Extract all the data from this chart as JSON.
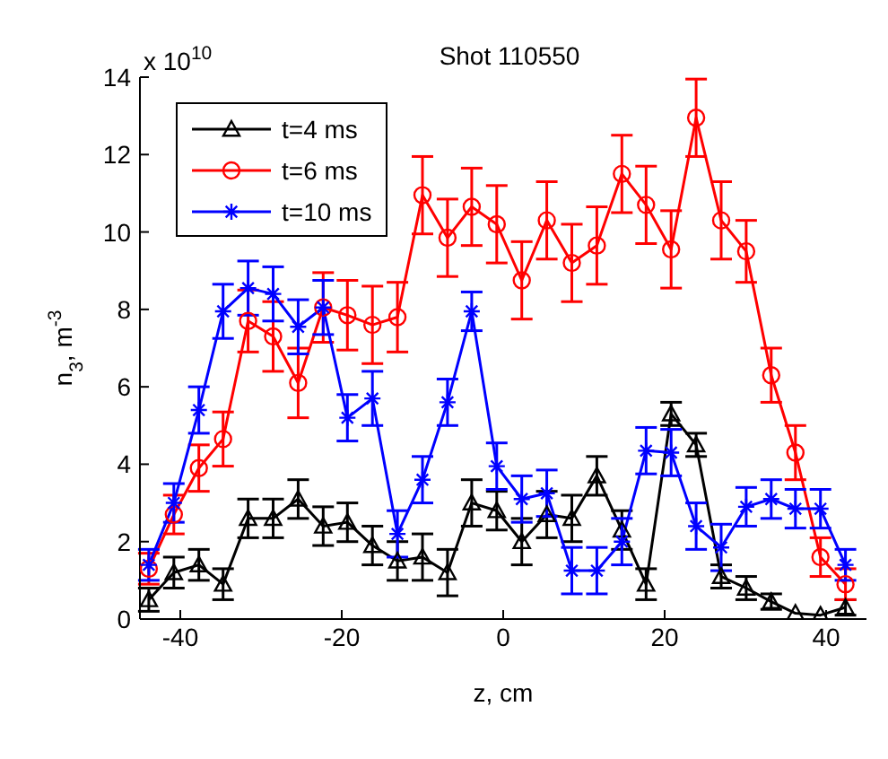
{
  "chart_data": {
    "type": "line",
    "title": "Shot 110550",
    "xlabel": "z, cm",
    "ylabel": "n$_{3}$, m$^{-3}$",
    "annotations": [
      "x 10$^{10}$"
    ],
    "x": [
      -43.9,
      -40.8,
      -37.7,
      -34.7,
      -31.6,
      -28.5,
      -25.4,
      -22.3,
      -19.3,
      -16.2,
      -13.1,
      -10.0,
      -6.9,
      -3.9,
      -0.8,
      2.3,
      5.4,
      8.5,
      11.6,
      14.7,
      17.7,
      20.8,
      23.9,
      27.0,
      30.1,
      33.2,
      36.2,
      39.3,
      42.4
    ],
    "series": [
      {
        "name": "t=4 ms",
        "color": "#000000",
        "marker": "triangle",
        "values": [
          0.5,
          1.2,
          1.4,
          0.9,
          2.6,
          2.6,
          3.1,
          2.4,
          2.5,
          1.9,
          1.5,
          1.6,
          1.2,
          3.0,
          2.8,
          2.0,
          2.7,
          2.6,
          3.7,
          2.3,
          0.9,
          5.3,
          4.5,
          1.1,
          0.8,
          0.45,
          0.15,
          0.1,
          0.3
        ],
        "errors": [
          0.3,
          0.4,
          0.4,
          0.4,
          0.5,
          0.5,
          0.5,
          0.5,
          0.5,
          0.5,
          0.5,
          0.6,
          0.6,
          0.6,
          0.5,
          0.6,
          0.6,
          0.6,
          0.5,
          0.5,
          0.4,
          0.3,
          0.3,
          0.3,
          0.3,
          0.2,
          null,
          null,
          0.2
        ]
      },
      {
        "name": "t=6 ms",
        "color": "#ff0000",
        "marker": "circle",
        "values": [
          1.3,
          2.7,
          3.9,
          4.65,
          7.7,
          7.3,
          6.1,
          8.05,
          7.85,
          7.6,
          7.8,
          10.95,
          9.85,
          10.65,
          10.2,
          8.75,
          10.3,
          9.2,
          9.65,
          11.5,
          10.7,
          9.55,
          12.95,
          10.3,
          9.5,
          6.3,
          4.3,
          1.6,
          0.9
        ],
        "errors": [
          0.4,
          0.5,
          0.6,
          0.7,
          0.8,
          0.9,
          0.9,
          0.9,
          0.9,
          1.0,
          0.9,
          1.0,
          1.0,
          1.0,
          1.0,
          1.0,
          1.0,
          1.0,
          1.0,
          1.0,
          1.0,
          1.0,
          1.0,
          1.0,
          0.8,
          0.7,
          0.7,
          0.5,
          0.4
        ]
      },
      {
        "name": "t=10 ms",
        "color": "#0000ff",
        "marker": "cross",
        "values": [
          1.4,
          3.0,
          5.4,
          7.95,
          8.55,
          8.4,
          7.55,
          8.05,
          5.2,
          5.7,
          2.2,
          3.6,
          5.6,
          7.95,
          3.95,
          3.1,
          3.25,
          1.25,
          1.25,
          2.0,
          4.35,
          4.3,
          2.4,
          1.85,
          2.9,
          3.1,
          2.85,
          2.85,
          1.4
        ],
        "errors": [
          0.4,
          0.5,
          0.6,
          0.7,
          0.7,
          0.7,
          0.7,
          0.7,
          0.6,
          0.7,
          0.6,
          0.6,
          0.6,
          0.5,
          0.6,
          0.6,
          0.6,
          0.6,
          0.6,
          0.6,
          0.6,
          0.6,
          0.6,
          0.6,
          0.5,
          0.5,
          0.5,
          0.5,
          0.4
        ]
      }
    ],
    "xlim": [
      -45,
      45
    ],
    "xticks": [
      -40,
      -20,
      0,
      20,
      40
    ],
    "ylim": [
      0,
      14
    ],
    "yticks": [
      0,
      2,
      4,
      6,
      8,
      10,
      12,
      14
    ],
    "grid": false,
    "legend": "top left",
    "line_style": "solid"
  }
}
